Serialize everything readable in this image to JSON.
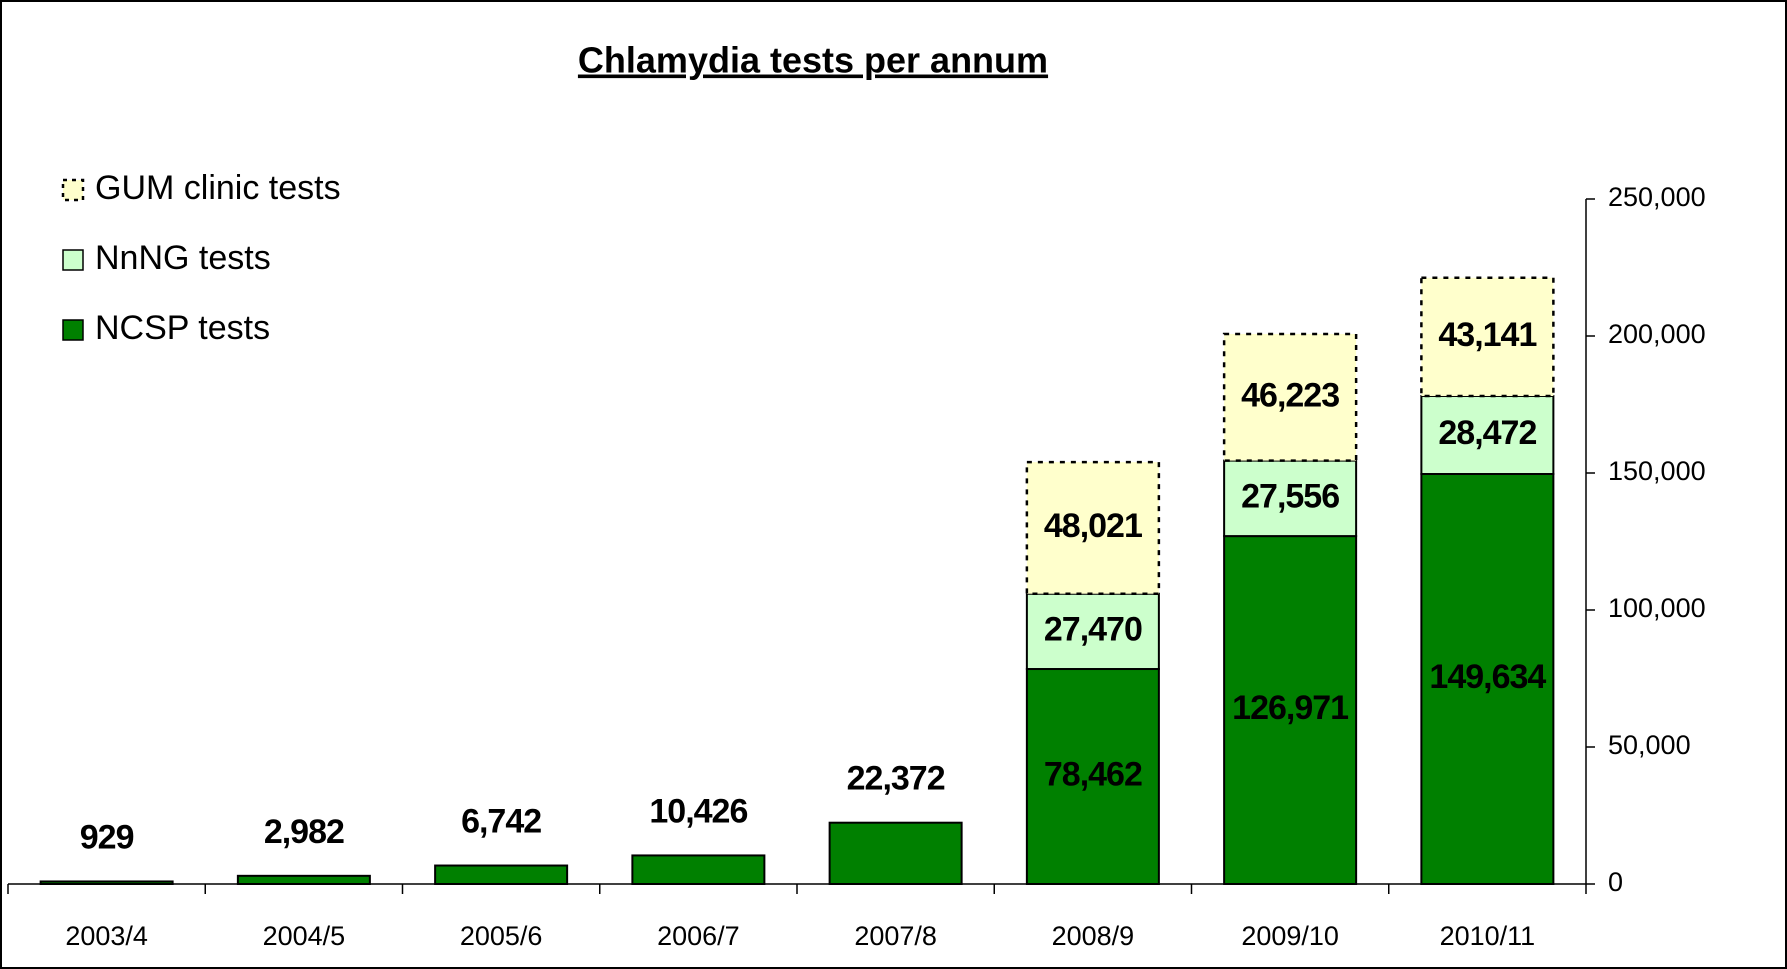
{
  "chart_data": {
    "type": "bar",
    "stacked": true,
    "title": "Chlamydia tests per annum",
    "categories": [
      "2003/4",
      "2004/5",
      "2005/6",
      "2006/7",
      "2007/8",
      "2008/9",
      "2009/10",
      "2010/11"
    ],
    "series": [
      {
        "name": "NCSP tests",
        "color": "#008000",
        "values": [
          929,
          2982,
          6742,
          10426,
          22372,
          78462,
          126971,
          149634
        ],
        "value_labels": [
          "929",
          "2,982",
          "6,742",
          "10,426",
          "22,372",
          "78,462",
          "126,971",
          "149,634"
        ]
      },
      {
        "name": "NnNG tests",
        "color": "#ccffcc",
        "values": [
          null,
          null,
          null,
          null,
          null,
          27470,
          27556,
          28472
        ],
        "value_labels": [
          null,
          null,
          null,
          null,
          null,
          "27,470",
          "27,556",
          "28,472"
        ]
      },
      {
        "name": "GUM clinic tests",
        "color": "#ffffcc",
        "dashed": true,
        "values": [
          null,
          null,
          null,
          null,
          null,
          48021,
          46223,
          43141
        ],
        "value_labels": [
          null,
          null,
          null,
          null,
          null,
          "48,021",
          "46,223",
          "43,141"
        ]
      }
    ],
    "ylim": [
      0,
      250000
    ],
    "yticks": [
      0,
      {
        "value": 50000,
        "label": "50,000"
      },
      {
        "value": 100000,
        "label": "100,000"
      },
      {
        "value": 150000,
        "label": "150,000"
      },
      {
        "value": 200000,
        "label": "200,000"
      },
      {
        "value": 250000,
        "label": "250,000"
      }
    ],
    "y_axis_side": "right",
    "grid": false,
    "legend": "top-left"
  }
}
